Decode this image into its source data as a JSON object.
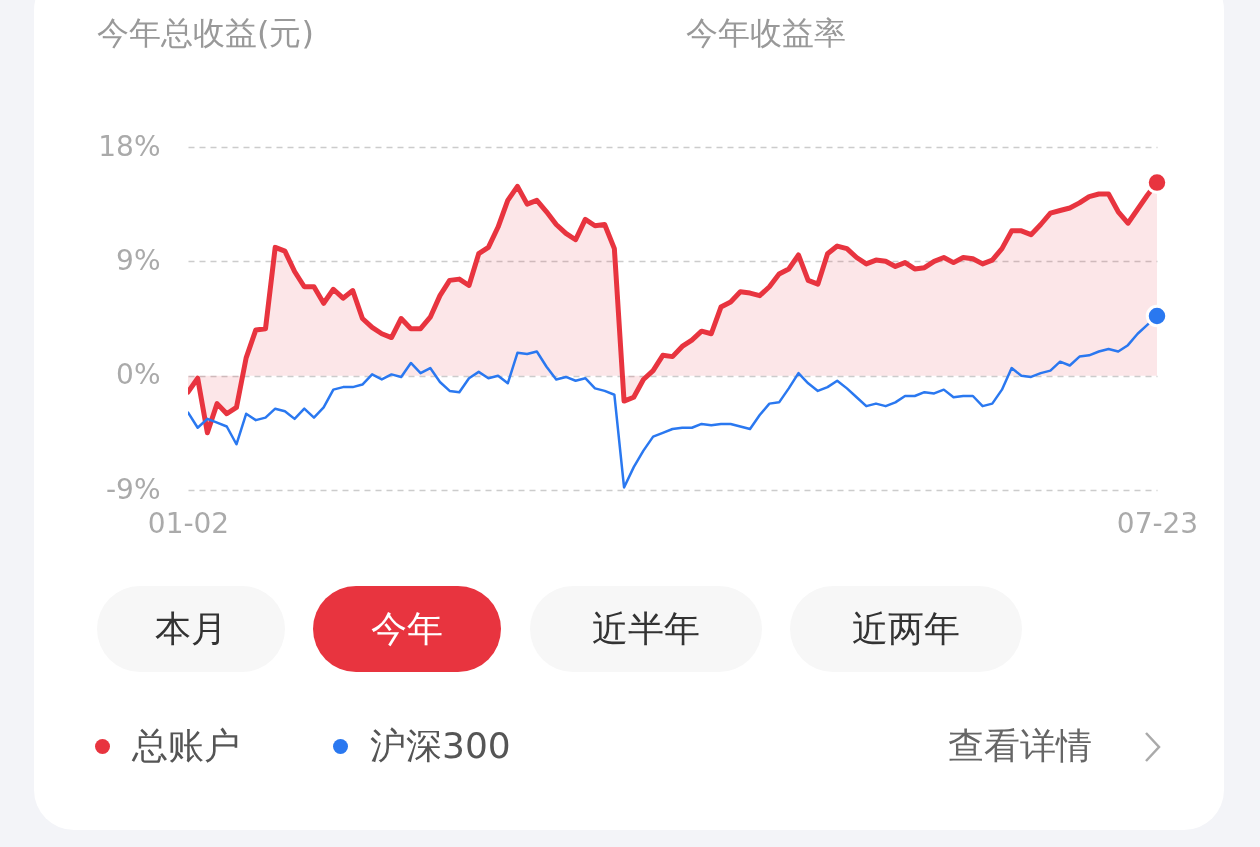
{
  "chart_data": {
    "type": "line",
    "title": "今年收益率",
    "annotations": [
      "今年总收益(元)",
      "本月",
      "今年",
      "近半年",
      "近两年",
      "查看详情"
    ],
    "categories": [
      "01-02",
      null,
      null,
      null,
      null,
      null,
      null,
      null,
      null,
      null,
      null,
      null,
      null,
      null,
      null,
      null,
      null,
      null,
      null,
      null,
      null,
      null,
      null,
      null,
      null,
      null,
      null,
      null,
      null,
      null,
      null,
      null,
      null,
      null,
      null,
      null,
      null,
      null,
      null,
      null,
      null,
      null,
      null,
      null,
      null,
      null,
      null,
      null,
      null,
      null,
      null,
      null,
      null,
      null,
      null,
      null,
      null,
      null,
      null,
      null,
      null,
      null,
      null,
      null,
      null,
      null,
      null,
      null,
      null,
      null,
      null,
      null,
      null,
      null,
      null,
      null,
      null,
      null,
      null,
      null,
      null,
      null,
      null,
      null,
      null,
      null,
      null,
      null,
      null,
      null,
      null,
      null,
      null,
      null,
      null,
      null,
      null,
      null,
      null,
      null,
      "07-23"
    ],
    "ylim": [
      -9,
      18
    ],
    "yticks": [
      {
        "value": -9,
        "label": "-9%"
      },
      {
        "value": 0,
        "label": "0%"
      },
      {
        "value": 9,
        "label": "9%"
      },
      {
        "value": 18,
        "label": "18%"
      }
    ],
    "grid": "y",
    "legend": "bottom",
    "series": [
      {
        "name": "总账户",
        "type": "area",
        "color": "#e8343f",
        "values": [
          -1.3,
          -0.2,
          -4.5,
          -2.2,
          -3.0,
          -2.5,
          1.4,
          3.6,
          3.7,
          10.1,
          9.8,
          8.2,
          7.0,
          7.0,
          5.7,
          6.8,
          6.1,
          6.7,
          4.5,
          3.8,
          3.3,
          3.0,
          4.5,
          3.7,
          3.7,
          4.6,
          6.3,
          7.5,
          7.6,
          7.1,
          9.6,
          10.1,
          11.7,
          13.8,
          14.9,
          13.5,
          13.8,
          12.9,
          11.9,
          11.2,
          10.7,
          12.3,
          11.8,
          11.9,
          10.0,
          -2.0,
          -1.7,
          -0.3,
          0.4,
          1.6,
          1.5,
          2.3,
          2.8,
          3.5,
          3.3,
          5.4,
          5.8,
          6.6,
          6.5,
          6.3,
          7.0,
          8.0,
          8.4,
          9.5,
          7.5,
          7.2,
          9.6,
          10.2,
          10.0,
          9.3,
          8.8,
          9.1,
          9.0,
          8.6,
          8.9,
          8.4,
          8.5,
          9.0,
          9.3,
          8.9,
          9.3,
          9.2,
          8.8,
          9.1,
          10.0,
          11.4,
          11.4,
          11.1,
          11.9,
          12.8,
          13.0,
          13.2,
          13.6,
          14.1,
          14.3,
          14.3,
          12.9,
          12.0,
          13.1,
          14.2,
          15.2
        ]
      },
      {
        "name": "沪深300",
        "type": "line",
        "color": "#2a78f0",
        "values": [
          -2.9,
          -4.1,
          -3.4,
          -3.7,
          -4.0,
          -5.4,
          -3.0,
          -3.5,
          -3.3,
          -2.6,
          -2.8,
          -3.4,
          -2.6,
          -3.3,
          -2.5,
          -1.1,
          -0.9,
          -0.9,
          -0.7,
          0.1,
          -0.3,
          0.1,
          -0.1,
          1.0,
          0.2,
          0.6,
          -0.5,
          -1.2,
          -1.3,
          -0.2,
          0.3,
          -0.2,
          0.0,
          -0.6,
          1.8,
          1.7,
          1.9,
          0.7,
          -0.3,
          -0.1,
          -0.4,
          -0.2,
          -1.0,
          -1.2,
          -1.5,
          -8.8,
          -7.2,
          -5.9,
          -4.8,
          -4.5,
          -4.2,
          -4.1,
          -4.1,
          -3.8,
          -3.9,
          -3.8,
          -3.8,
          -4.0,
          -4.2,
          -3.1,
          -2.2,
          -2.1,
          -1.0,
          0.2,
          -0.6,
          -1.2,
          -0.9,
          -0.4,
          -1.0,
          -1.7,
          -2.4,
          -2.2,
          -2.4,
          -2.1,
          -1.6,
          -1.6,
          -1.3,
          -1.4,
          -1.1,
          -1.7,
          -1.6,
          -1.6,
          -2.4,
          -2.2,
          -1.1,
          0.6,
          0.0,
          -0.1,
          0.2,
          0.4,
          1.1,
          0.8,
          1.5,
          1.6,
          1.9,
          2.1,
          1.9,
          2.4,
          3.3,
          4.0,
          4.7
        ]
      }
    ]
  }
}
